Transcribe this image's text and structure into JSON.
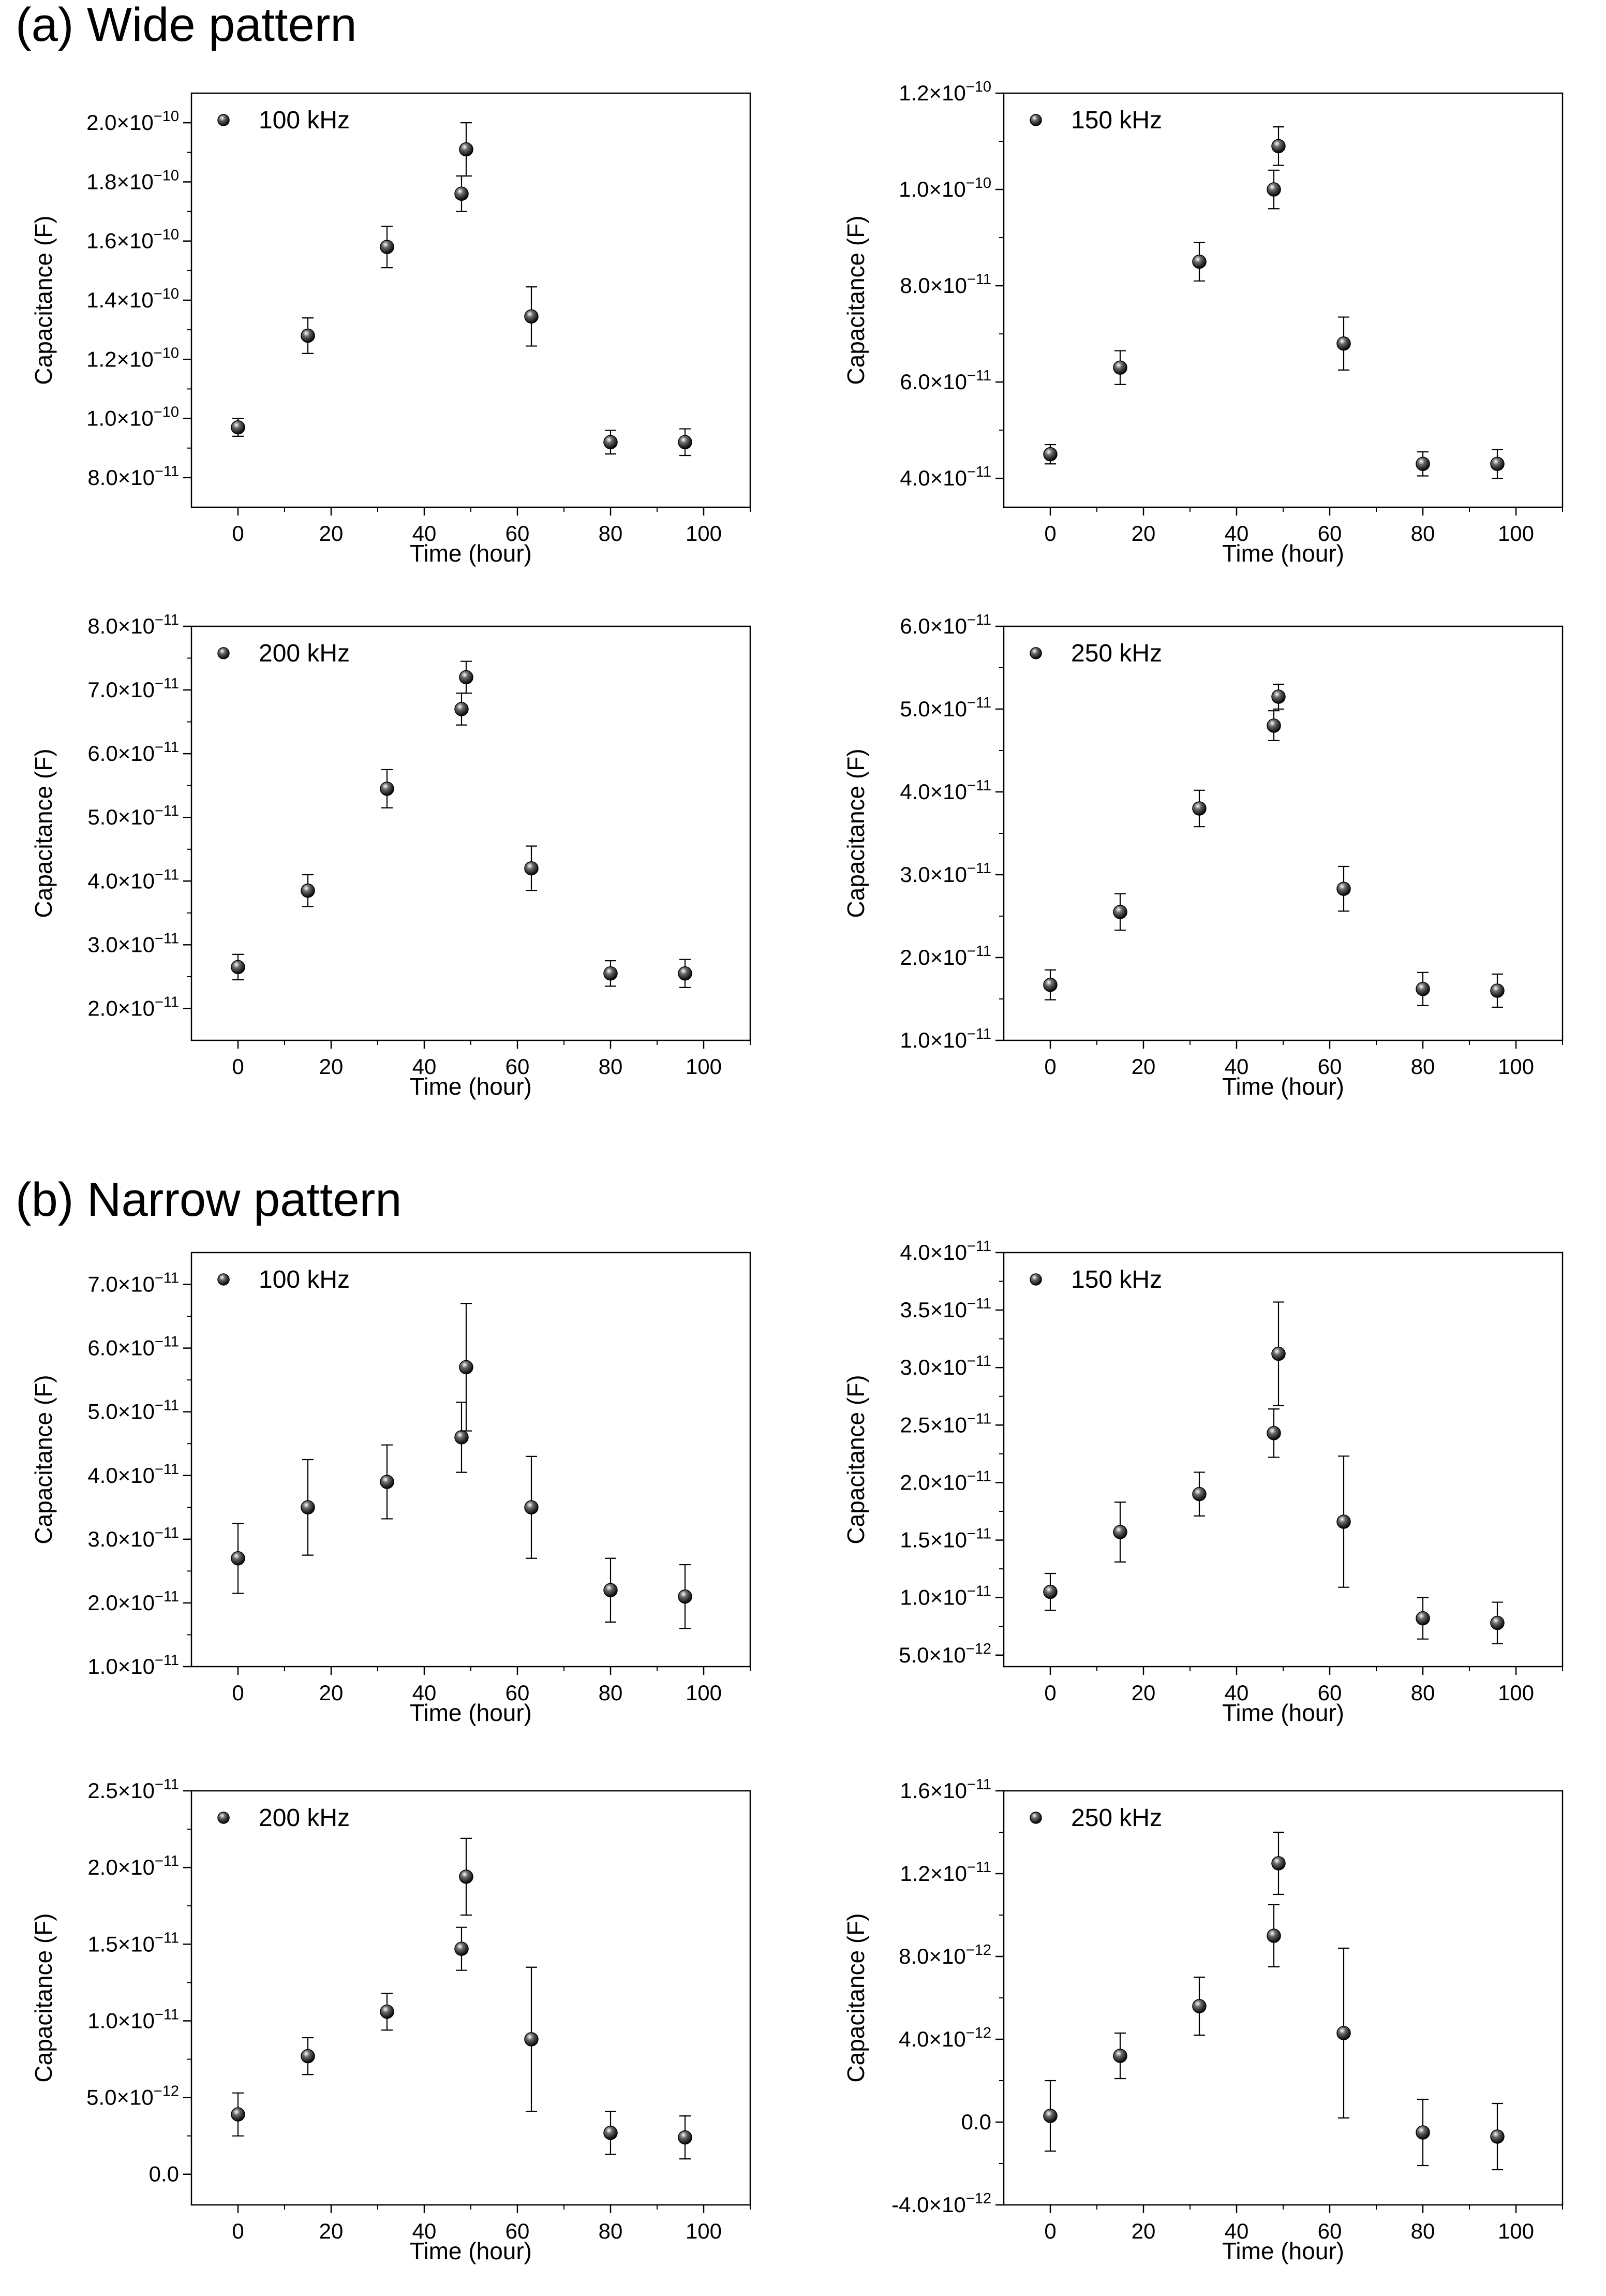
{
  "sections": [
    {
      "label": "(a) Wide pattern"
    },
    {
      "label": "(b) Narrow pattern"
    }
  ],
  "chart_data": [
    {
      "type": "scatter",
      "section": "(a) Wide pattern",
      "legend": "100 kHz",
      "legend_position": "top-left",
      "xlabel": "Time (hour)",
      "ylabel": "Capacitance (F)",
      "xlim": [
        -10,
        110
      ],
      "ylim": [
        7e-11,
        2.1e-10
      ],
      "xticks": [
        0,
        20,
        40,
        60,
        80,
        100
      ],
      "xtick_labels": [
        "0",
        "20",
        "40",
        "60",
        "80",
        "100"
      ],
      "yticks": [
        8e-11,
        1e-10,
        1.2e-10,
        1.4e-10,
        1.6e-10,
        1.8e-10,
        2e-10
      ],
      "ytick_labels": [
        {
          "m": "8.0×10",
          "e": "−11"
        },
        {
          "m": "1.0×10",
          "e": "−10"
        },
        {
          "m": "1.2×10",
          "e": "−10"
        },
        {
          "m": "1.4×10",
          "e": "−10"
        },
        {
          "m": "1.6×10",
          "e": "−10"
        },
        {
          "m": "1.8×10",
          "e": "−10"
        },
        {
          "m": "2.0×10",
          "e": "−10"
        }
      ],
      "x": [
        0,
        15,
        32,
        48,
        49,
        63,
        80,
        96
      ],
      "y": [
        9.7e-11,
        1.28e-10,
        1.58e-10,
        1.76e-10,
        1.91e-10,
        1.345e-10,
        9.2e-11,
        9.2e-11
      ],
      "err": [
        3e-12,
        6e-12,
        7e-12,
        6e-12,
        9e-12,
        1e-11,
        4e-12,
        4.5e-12
      ]
    },
    {
      "type": "scatter",
      "section": "(a) Wide pattern",
      "legend": "150 kHz",
      "legend_position": "top-left",
      "xlabel": "Time (hour)",
      "ylabel": "Capacitance (F)",
      "xlim": [
        -10,
        110
      ],
      "ylim": [
        3.4e-11,
        1.2e-10
      ],
      "xticks": [
        0,
        20,
        40,
        60,
        80,
        100
      ],
      "xtick_labels": [
        "0",
        "20",
        "40",
        "60",
        "80",
        "100"
      ],
      "yticks": [
        4e-11,
        6e-11,
        8e-11,
        1e-10,
        1.2e-10
      ],
      "ytick_labels": [
        {
          "m": "4.0×10",
          "e": "−11"
        },
        {
          "m": "6.0×10",
          "e": "−11"
        },
        {
          "m": "8.0×10",
          "e": "−11"
        },
        {
          "m": "1.0×10",
          "e": "−10"
        },
        {
          "m": "1.2×10",
          "e": "−10"
        }
      ],
      "x": [
        0,
        15,
        32,
        48,
        49,
        63,
        80,
        96
      ],
      "y": [
        4.5e-11,
        6.3e-11,
        8.5e-11,
        1e-10,
        1.09e-10,
        6.8e-11,
        4.3e-11,
        4.3e-11
      ],
      "err": [
        2e-12,
        3.5e-12,
        4e-12,
        4e-12,
        4e-12,
        5.5e-12,
        2.5e-12,
        3e-12
      ]
    },
    {
      "type": "scatter",
      "section": "(a) Wide pattern",
      "legend": "200 kHz",
      "legend_position": "top-left",
      "xlabel": "Time (hour)",
      "ylabel": "Capacitance (F)",
      "xlim": [
        -10,
        110
      ],
      "ylim": [
        1.5e-11,
        8e-11
      ],
      "xticks": [
        0,
        20,
        40,
        60,
        80,
        100
      ],
      "xtick_labels": [
        "0",
        "20",
        "40",
        "60",
        "80",
        "100"
      ],
      "yticks": [
        2e-11,
        3e-11,
        4e-11,
        5e-11,
        6e-11,
        7e-11,
        8e-11
      ],
      "ytick_labels": [
        {
          "m": "2.0×10",
          "e": "−11"
        },
        {
          "m": "3.0×10",
          "e": "−11"
        },
        {
          "m": "4.0×10",
          "e": "−11"
        },
        {
          "m": "5.0×10",
          "e": "−11"
        },
        {
          "m": "6.0×10",
          "e": "−11"
        },
        {
          "m": "7.0×10",
          "e": "−11"
        },
        {
          "m": "8.0×10",
          "e": "−11"
        }
      ],
      "x": [
        0,
        15,
        32,
        48,
        49,
        63,
        80,
        96
      ],
      "y": [
        2.65e-11,
        3.85e-11,
        5.45e-11,
        6.7e-11,
        7.2e-11,
        4.2e-11,
        2.55e-11,
        2.55e-11
      ],
      "err": [
        2e-12,
        2.5e-12,
        3e-12,
        2.5e-12,
        2.5e-12,
        3.5e-12,
        2e-12,
        2.2e-12
      ]
    },
    {
      "type": "scatter",
      "section": "(a) Wide pattern",
      "legend": "250 kHz",
      "legend_position": "top-left",
      "xlabel": "Time (hour)",
      "ylabel": "Capacitance (F)",
      "xlim": [
        -10,
        110
      ],
      "ylim": [
        1e-11,
        6e-11
      ],
      "xticks": [
        0,
        20,
        40,
        60,
        80,
        100
      ],
      "xtick_labels": [
        "0",
        "20",
        "40",
        "60",
        "80",
        "100"
      ],
      "yticks": [
        1e-11,
        2e-11,
        3e-11,
        4e-11,
        5e-11,
        6e-11
      ],
      "ytick_labels": [
        {
          "m": "1.0×10",
          "e": "−11"
        },
        {
          "m": "2.0×10",
          "e": "−11"
        },
        {
          "m": "3.0×10",
          "e": "−11"
        },
        {
          "m": "4.0×10",
          "e": "−11"
        },
        {
          "m": "5.0×10",
          "e": "−11"
        },
        {
          "m": "6.0×10",
          "e": "−11"
        }
      ],
      "x": [
        0,
        15,
        32,
        48,
        49,
        63,
        80,
        96
      ],
      "y": [
        1.67e-11,
        2.55e-11,
        3.8e-11,
        4.8e-11,
        5.15e-11,
        2.83e-11,
        1.62e-11,
        1.6e-11
      ],
      "err": [
        1.8e-12,
        2.2e-12,
        2.2e-12,
        1.8e-12,
        1.5e-12,
        2.7e-12,
        2e-12,
        2e-12
      ]
    },
    {
      "type": "scatter",
      "section": "(b) Narrow pattern",
      "legend": "100 kHz",
      "legend_position": "top-left",
      "xlabel": "Time (hour)",
      "ylabel": "Capacitance (F)",
      "xlim": [
        -10,
        110
      ],
      "ylim": [
        1e-11,
        7.5e-11
      ],
      "xticks": [
        0,
        20,
        40,
        60,
        80,
        100
      ],
      "xtick_labels": [
        "0",
        "20",
        "40",
        "60",
        "80",
        "100"
      ],
      "yticks": [
        1e-11,
        2e-11,
        3e-11,
        4e-11,
        5e-11,
        6e-11,
        7e-11
      ],
      "ytick_labels": [
        {
          "m": "1.0×10",
          "e": "−11"
        },
        {
          "m": "2.0×10",
          "e": "−11"
        },
        {
          "m": "3.0×10",
          "e": "−11"
        },
        {
          "m": "4.0×10",
          "e": "−11"
        },
        {
          "m": "5.0×10",
          "e": "−11"
        },
        {
          "m": "6.0×10",
          "e": "−11"
        },
        {
          "m": "7.0×10",
          "e": "−11"
        }
      ],
      "x": [
        0,
        15,
        32,
        48,
        49,
        63,
        80,
        96
      ],
      "y": [
        2.7e-11,
        3.5e-11,
        3.9e-11,
        4.6e-11,
        5.7e-11,
        3.5e-11,
        2.2e-11,
        2.1e-11
      ],
      "err": [
        5.5e-12,
        7.5e-12,
        5.8e-12,
        5.5e-12,
        1e-11,
        8e-12,
        5e-12,
        5e-12
      ]
    },
    {
      "type": "scatter",
      "section": "(b) Narrow pattern",
      "legend": "150 kHz",
      "legend_position": "top-left",
      "xlabel": "Time (hour)",
      "ylabel": "Capacitance (F)",
      "xlim": [
        -10,
        110
      ],
      "ylim": [
        4e-12,
        4e-11
      ],
      "xticks": [
        0,
        20,
        40,
        60,
        80,
        100
      ],
      "xtick_labels": [
        "0",
        "20",
        "40",
        "60",
        "80",
        "100"
      ],
      "yticks": [
        5e-12,
        1e-11,
        1.5e-11,
        2e-11,
        2.5e-11,
        3e-11,
        3.5e-11,
        4e-11
      ],
      "ytick_labels": [
        {
          "m": "5.0×10",
          "e": "−12"
        },
        {
          "m": "1.0×10",
          "e": "−11"
        },
        {
          "m": "1.5×10",
          "e": "−11"
        },
        {
          "m": "2.0×10",
          "e": "−11"
        },
        {
          "m": "2.5×10",
          "e": "−11"
        },
        {
          "m": "3.0×10",
          "e": "−11"
        },
        {
          "m": "3.5×10",
          "e": "−11"
        },
        {
          "m": "4.0×10",
          "e": "−11"
        }
      ],
      "x": [
        0,
        15,
        32,
        48,
        49,
        63,
        80,
        96
      ],
      "y": [
        1.05e-11,
        1.57e-11,
        1.9e-11,
        2.43e-11,
        3.12e-11,
        1.66e-11,
        8.2e-12,
        7.8e-12
      ],
      "err": [
        1.6e-12,
        2.6e-12,
        1.9e-12,
        2.1e-12,
        4.5e-12,
        5.7e-12,
        1.8e-12,
        1.8e-12
      ]
    },
    {
      "type": "scatter",
      "section": "(b) Narrow pattern",
      "legend": "200 kHz",
      "legend_position": "top-left",
      "xlabel": "Time (hour)",
      "ylabel": "Capacitance (F)",
      "xlim": [
        -10,
        110
      ],
      "ylim": [
        -2e-12,
        2.5e-11
      ],
      "xticks": [
        0,
        20,
        40,
        60,
        80,
        100
      ],
      "xtick_labels": [
        "0",
        "20",
        "40",
        "60",
        "80",
        "100"
      ],
      "yticks": [
        0,
        5e-12,
        1e-11,
        1.5e-11,
        2e-11,
        2.5e-11
      ],
      "ytick_labels": [
        {
          "m": "0.0",
          "e": ""
        },
        {
          "m": "5.0×10",
          "e": "−12"
        },
        {
          "m": "1.0×10",
          "e": "−11"
        },
        {
          "m": "1.5×10",
          "e": "−11"
        },
        {
          "m": "2.0×10",
          "e": "−11"
        },
        {
          "m": "2.5×10",
          "e": "−11"
        }
      ],
      "x": [
        0,
        15,
        32,
        48,
        49,
        63,
        80,
        96
      ],
      "y": [
        3.9e-12,
        7.7e-12,
        1.06e-11,
        1.47e-11,
        1.94e-11,
        8.8e-12,
        2.7e-12,
        2.4e-12
      ],
      "err": [
        1.4e-12,
        1.2e-12,
        1.2e-12,
        1.4e-12,
        2.5e-12,
        4.7e-12,
        1.4e-12,
        1.4e-12
      ]
    },
    {
      "type": "scatter",
      "section": "(b) Narrow pattern",
      "legend": "250 kHz",
      "legend_position": "top-left",
      "xlabel": "Time (hour)",
      "ylabel": "Capacitance (F)",
      "xlim": [
        -10,
        110
      ],
      "ylim": [
        -4e-12,
        1.6e-11
      ],
      "xticks": [
        0,
        20,
        40,
        60,
        80,
        100
      ],
      "xtick_labels": [
        "0",
        "20",
        "40",
        "60",
        "80",
        "100"
      ],
      "yticks": [
        -4e-12,
        0,
        4e-12,
        8e-12,
        1.2e-11,
        1.6e-11
      ],
      "ytick_labels": [
        {
          "m": "-4.0×10",
          "e": "−12"
        },
        {
          "m": "0.0",
          "e": ""
        },
        {
          "m": "4.0×10",
          "e": "−12"
        },
        {
          "m": "8.0×10",
          "e": "−12"
        },
        {
          "m": "1.2×10",
          "e": "−11"
        },
        {
          "m": "1.6×10",
          "e": "−11"
        }
      ],
      "x": [
        0,
        15,
        32,
        48,
        49,
        63,
        80,
        96
      ],
      "y": [
        3e-13,
        3.2e-12,
        5.6e-12,
        9e-12,
        1.25e-11,
        4.3e-12,
        -5e-13,
        -7e-13
      ],
      "err": [
        1.7e-12,
        1.1e-12,
        1.4e-12,
        1.5e-12,
        1.5e-12,
        4.1e-12,
        1.6e-12,
        1.6e-12
      ]
    }
  ]
}
